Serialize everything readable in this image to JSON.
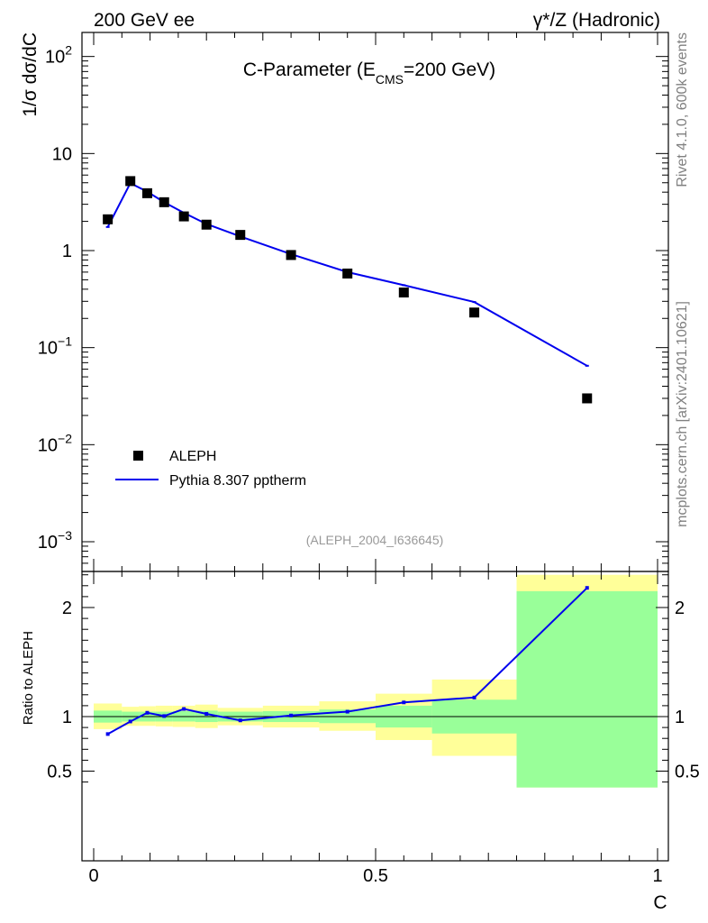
{
  "header": {
    "left": "200 GeV ee",
    "right": "γ*/Z (Hadronic)"
  },
  "side_labels": {
    "rivet": "Rivet 4.1.0,  600k events",
    "mcplots": "mcplots.cern.ch [arXiv:2401.10621]"
  },
  "legend": {
    "data_label": "ALEPH",
    "mc_label": "Pythia 8.307 pptherm"
  },
  "analysis_id": "(ALEPH_2004_I636645)",
  "colors": {
    "mc_line": "#0000ee",
    "data_marker": "#000000",
    "band_inner": "#99ff99",
    "band_outer": "#ffff99"
  },
  "chart_data": [
    {
      "type": "scatter",
      "name": "main",
      "title": "C-Parameter (E",
      "title_sub": "CMS",
      "title_tail": "=200 GeV)",
      "ylabel": "1/σ  dσ/dC",
      "yscale": "log",
      "ylim": [
        0.0005,
        180
      ],
      "xlim": [
        0,
        1
      ],
      "y_ticks": [
        {
          "value": 0.001,
          "base": "10",
          "exp": "−3"
        },
        {
          "value": 0.01,
          "base": "10",
          "exp": "−2"
        },
        {
          "value": 0.1,
          "base": "10",
          "exp": "−1"
        },
        {
          "value": 1,
          "base": "1",
          "exp": ""
        },
        {
          "value": 10,
          "base": "10",
          "exp": ""
        },
        {
          "value": 100,
          "base": "10",
          "exp": "2"
        }
      ],
      "series": [
        {
          "name": "ALEPH",
          "kind": "markers",
          "x": [
            0.025,
            0.065,
            0.095,
            0.125,
            0.16,
            0.2,
            0.26,
            0.35,
            0.45,
            0.55,
            0.675,
            0.875
          ],
          "values": [
            2.1,
            5.2,
            3.9,
            3.15,
            2.25,
            1.85,
            1.45,
            0.9,
            0.58,
            0.37,
            0.23,
            0.03
          ]
        },
        {
          "name": "Pythia 8.307 pptherm",
          "kind": "line",
          "x": [
            0.025,
            0.065,
            0.095,
            0.125,
            0.16,
            0.2,
            0.26,
            0.35,
            0.45,
            0.55,
            0.675,
            0.875
          ],
          "values": [
            1.75,
            4.95,
            4.05,
            3.15,
            2.45,
            1.88,
            1.4,
            0.92,
            0.6,
            0.44,
            0.295,
            0.065
          ]
        }
      ]
    },
    {
      "type": "line",
      "name": "ratio",
      "xlabel": "C",
      "ylabel": "Ratio to ALEPH",
      "ylim": [
        0.35,
        2.3
      ],
      "xlim": [
        0,
        1
      ],
      "x_ticks": [
        "0",
        "0.5",
        "1"
      ],
      "y_ticks": [
        "0.5",
        "1",
        "2"
      ],
      "bins": [
        {
          "lo": 0.0,
          "hi": 0.05,
          "inner": [
            0.945,
            1.055
          ],
          "outer": [
            0.885,
            1.12
          ]
        },
        {
          "lo": 0.05,
          "hi": 0.08,
          "inner": [
            0.955,
            1.045
          ],
          "outer": [
            0.915,
            1.09
          ]
        },
        {
          "lo": 0.08,
          "hi": 0.11,
          "inner": [
            0.955,
            1.045
          ],
          "outer": [
            0.915,
            1.095
          ]
        },
        {
          "lo": 0.11,
          "hi": 0.14,
          "inner": [
            0.955,
            1.045
          ],
          "outer": [
            0.91,
            1.1
          ]
        },
        {
          "lo": 0.14,
          "hi": 0.18,
          "inner": [
            0.955,
            1.05
          ],
          "outer": [
            0.905,
            1.1
          ]
        },
        {
          "lo": 0.18,
          "hi": 0.22,
          "inner": [
            0.95,
            1.055
          ],
          "outer": [
            0.895,
            1.11
          ]
        },
        {
          "lo": 0.22,
          "hi": 0.3,
          "inner": [
            0.955,
            1.045
          ],
          "outer": [
            0.92,
            1.08
          ]
        },
        {
          "lo": 0.3,
          "hi": 0.4,
          "inner": [
            0.95,
            1.05
          ],
          "outer": [
            0.9,
            1.1
          ]
        },
        {
          "lo": 0.4,
          "hi": 0.5,
          "inner": [
            0.94,
            1.065
          ],
          "outer": [
            0.87,
            1.14
          ]
        },
        {
          "lo": 0.5,
          "hi": 0.6,
          "inner": [
            0.9,
            1.1
          ],
          "outer": [
            0.785,
            1.21
          ]
        },
        {
          "lo": 0.6,
          "hi": 0.75,
          "inner": [
            0.845,
            1.155
          ],
          "outer": [
            0.64,
            1.34
          ]
        },
        {
          "lo": 0.75,
          "hi": 1.0,
          "inner": [
            0.35,
            2.15
          ],
          "outer": [
            0.35,
            2.3
          ]
        }
      ],
      "series": [
        {
          "name": "Pythia 8.307 pptherm / ALEPH",
          "x": [
            0.025,
            0.065,
            0.095,
            0.125,
            0.16,
            0.2,
            0.26,
            0.35,
            0.45,
            0.55,
            0.675,
            0.875
          ],
          "values": [
            0.84,
            0.955,
            1.035,
            1.005,
            1.07,
            1.025,
            0.965,
            1.01,
            1.045,
            1.13,
            1.175,
            2.18
          ]
        }
      ]
    }
  ]
}
